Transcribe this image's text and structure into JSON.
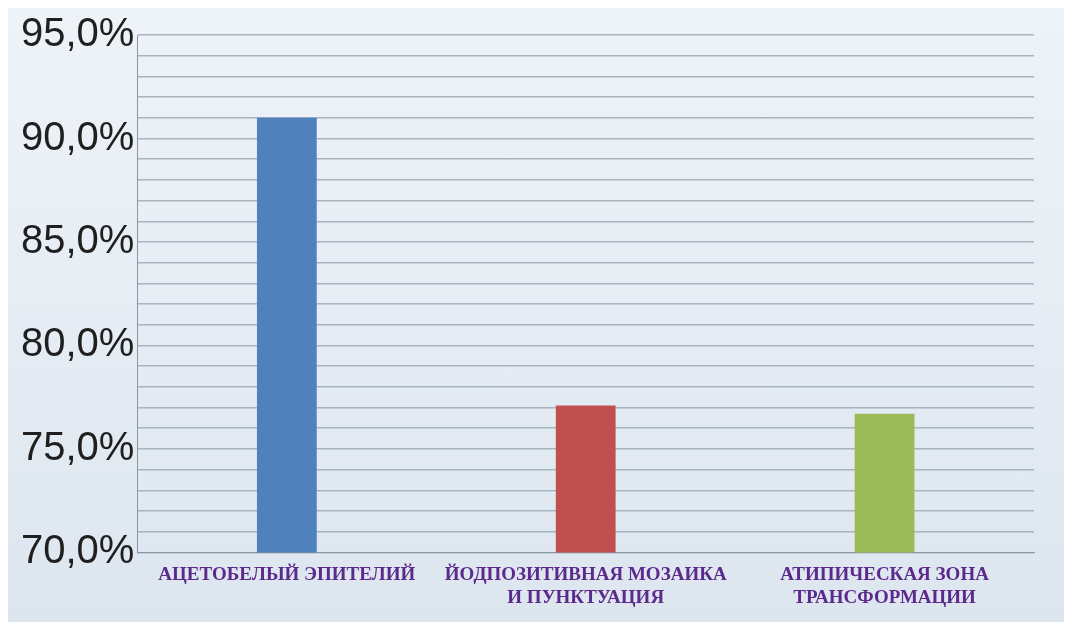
{
  "chart_data": {
    "type": "bar",
    "categories": [
      "АЦЕТОБЕЛЫЙ ЭПИТЕЛИЙ",
      "ЙОДПОЗИТИВНАЯ МОЗАИКА И ПУНКТУАЦИЯ",
      "АТИПИЧЕСКАЯ ЗОНА ТРАНСФОРМАЦИИ"
    ],
    "values": [
      91.0,
      77.1,
      76.7
    ],
    "colors": [
      "#4f81bd",
      "#c0504d",
      "#9bbb59"
    ],
    "ylim": [
      70,
      95
    ],
    "yticks": [
      {
        "value": 70,
        "label": "70,0%"
      },
      {
        "value": 71,
        "label": null
      },
      {
        "value": 72,
        "label": null
      },
      {
        "value": 73,
        "label": null
      },
      {
        "value": 74,
        "label": null
      },
      {
        "value": 75,
        "label": "75,0%"
      },
      {
        "value": 76,
        "label": null
      },
      {
        "value": 77,
        "label": null
      },
      {
        "value": 78,
        "label": null
      },
      {
        "value": 79,
        "label": null
      },
      {
        "value": 80,
        "label": "80,0%"
      },
      {
        "value": 81,
        "label": null
      },
      {
        "value": 82,
        "label": null
      },
      {
        "value": 83,
        "label": null
      },
      {
        "value": 84,
        "label": null
      },
      {
        "value": 85,
        "label": "85,0%"
      },
      {
        "value": 86,
        "label": null
      },
      {
        "value": 87,
        "label": null
      },
      {
        "value": 88,
        "label": null
      },
      {
        "value": 89,
        "label": null
      },
      {
        "value": 90,
        "label": "90,0%"
      },
      {
        "value": 91,
        "label": null
      },
      {
        "value": 92,
        "label": null
      },
      {
        "value": 93,
        "label": null
      },
      {
        "value": 94,
        "label": null
      },
      {
        "value": 95,
        "label": "95,0%"
      }
    ],
    "grid": "y"
  }
}
